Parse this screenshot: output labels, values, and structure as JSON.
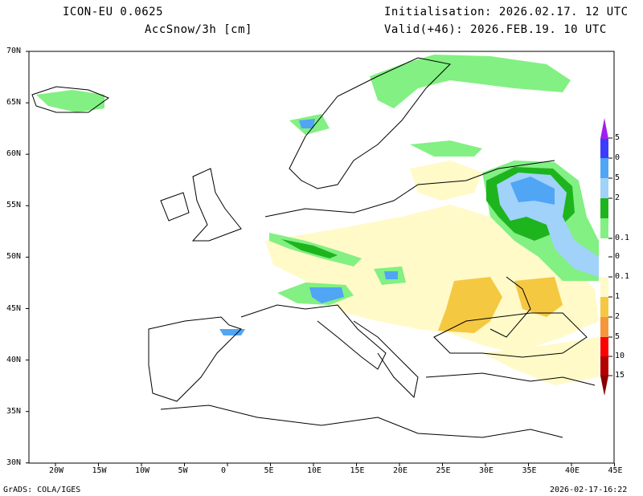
{
  "header": {
    "model": "ICON-EU 0.0625",
    "variable": "AccSnow/3h [cm]",
    "init": "Initialisation: 2026.02.17. 12 UTC",
    "valid": "Valid(+46): 2026.FEB.19. 10 UTC"
  },
  "map": {
    "lon_labels": [
      "20W",
      "15W",
      "10W",
      "5W",
      "0",
      "5E",
      "10E",
      "15E",
      "20E",
      "25E",
      "30E",
      "35E",
      "40E",
      "45E"
    ],
    "lat_labels": [
      "70N",
      "65N",
      "60N",
      "55N",
      "50N",
      "45N",
      "40N",
      "35N",
      "30N"
    ]
  },
  "legend": {
    "labels": [
      "5",
      "0",
      "5",
      "2",
      "0.1",
      "0",
      "0.1",
      "1",
      "2",
      "5",
      "10",
      "15"
    ],
    "colors": [
      "#a020f0",
      "#3c3cff",
      "#50a5f5",
      "#a0d2fa",
      "#1eb41e",
      "#82f082",
      "#ffffff",
      "#ffffff",
      "#fffac8",
      "#f5c841",
      "#f5963c",
      "#ff0000",
      "#b40000",
      "#8b0000"
    ]
  },
  "footer": {
    "left": "GrADS: COLA/IGES",
    "right": "2026-02-17-16:22"
  }
}
